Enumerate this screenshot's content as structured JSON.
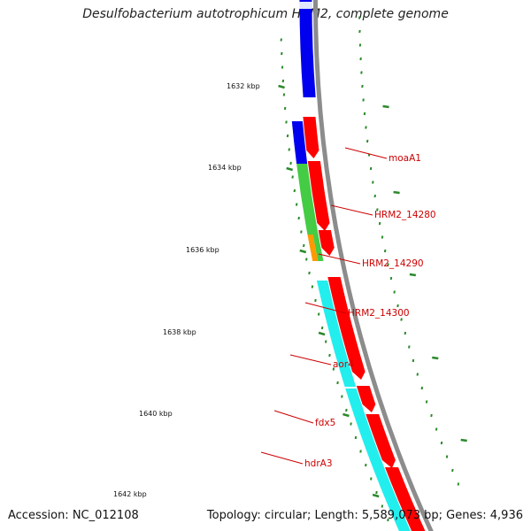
{
  "title": "Desulfobacterium autotrophicum HRM2, complete genome",
  "accession": "Accession: NC_012108",
  "topology": "Topology: circular; Length: 5,589,073 bp; Genes: 4,936",
  "colors": {
    "backbone": "#8c8c8c",
    "tick": "#2a8a2a",
    "label": "#cc0000",
    "red": "#ff0000",
    "blue": "#0000ee",
    "green": "#44cc44",
    "orange": "#ff9900",
    "cyan": "#22eeee"
  },
  "tick_labels": [
    {
      "id": "t1632",
      "text": "1632 kbp"
    },
    {
      "id": "t1634",
      "text": "1634 kbp"
    },
    {
      "id": "t1636",
      "text": "1636 kbp"
    },
    {
      "id": "t1638",
      "text": "1638 kbp"
    },
    {
      "id": "t1640",
      "text": "1640 kbp"
    },
    {
      "id": "t1642",
      "text": "1642 kbp"
    }
  ],
  "gene_labels": [
    {
      "id": "moaA1",
      "text": "moaA1"
    },
    {
      "id": "hrm2_14280",
      "text": "HRM2_14280"
    },
    {
      "id": "hrm2_14290",
      "text": "HRM2_14290"
    },
    {
      "id": "hrm2_14300",
      "text": "HRM2_14300"
    },
    {
      "id": "aor4",
      "text": "aor4"
    },
    {
      "id": "fdx5",
      "text": "fdx5"
    },
    {
      "id": "hdrA3",
      "text": "hdrA3"
    }
  ]
}
